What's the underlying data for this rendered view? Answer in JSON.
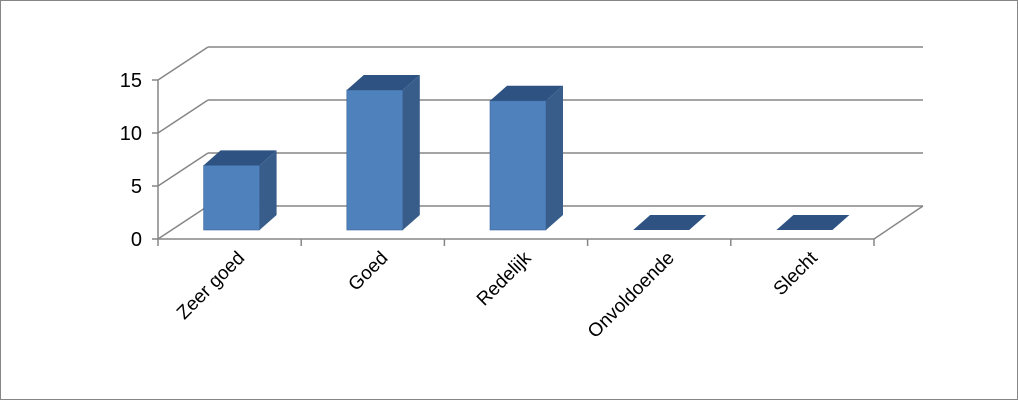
{
  "chart_data": {
    "type": "bar",
    "style": "3d-column",
    "categories": [
      "Zeer goed",
      "Goed",
      "Redelijk",
      "Onvoldoende",
      "Slecht"
    ],
    "values": [
      6,
      13,
      12,
      0,
      0
    ],
    "title": "",
    "xlabel": "",
    "ylabel": "",
    "ylim": [
      0,
      15
    ],
    "yticks": [
      0,
      5,
      10,
      15
    ],
    "grid": true,
    "legend": "none",
    "colors": {
      "bar_front": "#4F81BD",
      "bar_side": "#385D8A",
      "bar_top": "#2E5383",
      "grid": "#868686",
      "axis": "#868686"
    }
  }
}
